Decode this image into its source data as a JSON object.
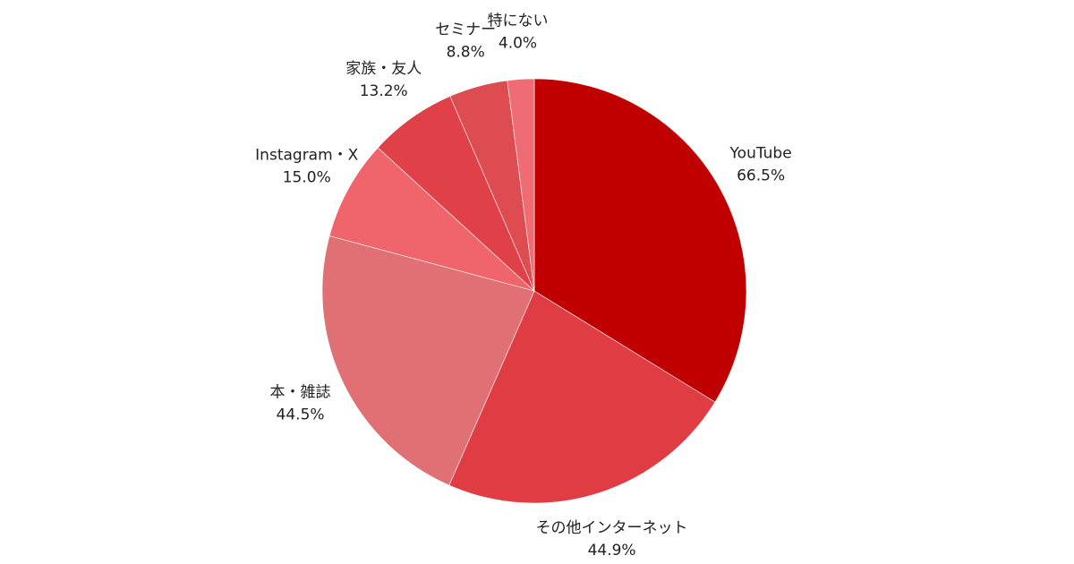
{
  "chart_data": {
    "type": "pie",
    "categories": [
      "YouTube",
      "その他インターネット",
      "本・雑誌",
      "Instagram・X",
      "家族・友人",
      "セミナー",
      "特にない"
    ],
    "values": [
      66.5,
      44.9,
      44.5,
      15.0,
      13.2,
      8.8,
      4.0
    ],
    "value_labels": [
      "66.5%",
      "44.9%",
      "44.5%",
      "15.0%",
      "13.2%",
      "8.8%",
      "4.0%"
    ],
    "colors": [
      "#c00000",
      "#e03c44",
      "#e07074",
      "#f0646c",
      "#e04048",
      "#dc4c50",
      "#f06c74"
    ]
  }
}
